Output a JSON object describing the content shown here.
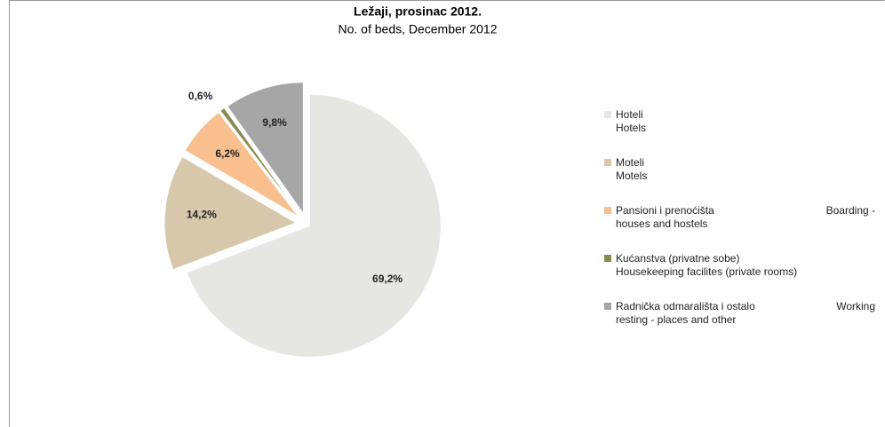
{
  "chart_data": {
    "type": "pie",
    "title": "Ležaji, prosinac 2012.",
    "subtitle": "No. of beds, December  2012",
    "categories": [
      "Hoteli\nHotels",
      "Moteli\nMotels",
      "Pansioni  i  prenoćišta\nhouses and hostels",
      "Kućanstva (privatne sobe)\nHousekeeping facilites (private rooms)",
      "Radnička odmarališta i ostalo\nresting - places and other"
    ],
    "category_suffixes": [
      null,
      null,
      "Boarding -",
      null,
      "Working"
    ],
    "values": [
      69.2,
      14.2,
      6.2,
      0.6,
      9.8
    ],
    "value_labels": [
      "69,2%",
      "14,2%",
      "6,2%",
      "0,6%",
      "9,8%"
    ],
    "colors": [
      "#e6e6e3",
      "#d8c8ab",
      "#f9bf8e",
      "#8a8a50",
      "#a6a6a6"
    ],
    "legend": "right"
  }
}
